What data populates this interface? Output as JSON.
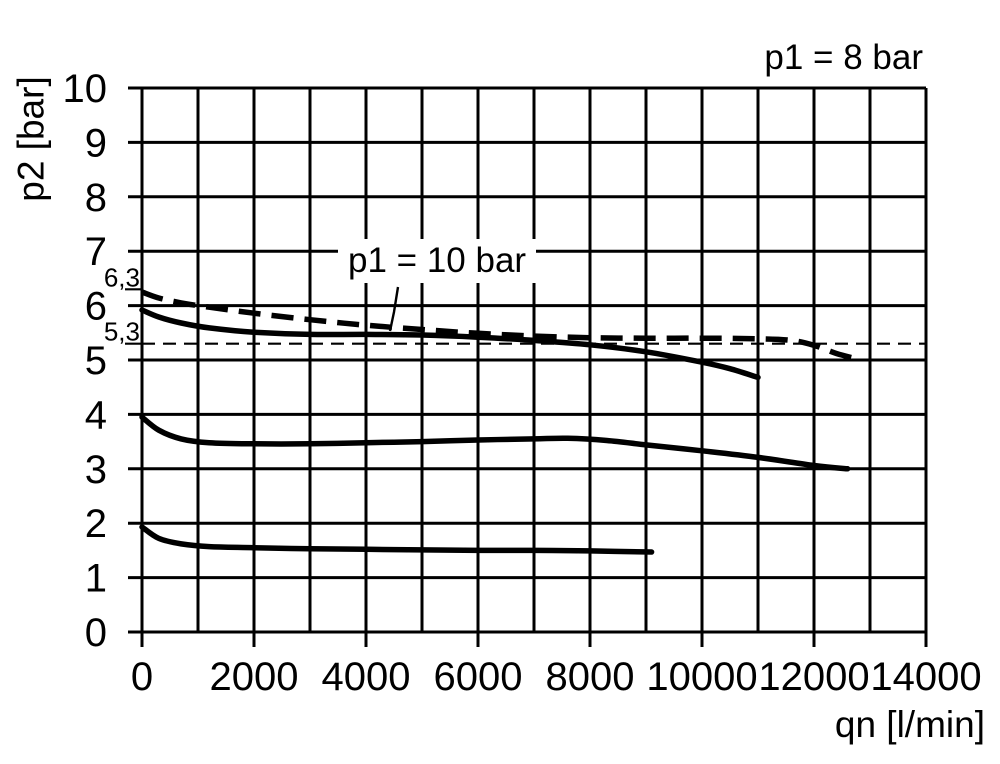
{
  "chart_data": {
    "type": "line",
    "xlabel": "qn [l/min]",
    "ylabel": "p2 [bar]",
    "xlim": [
      0,
      14000
    ],
    "ylim": [
      0,
      10
    ],
    "x_grid_step": 1000,
    "y_grid_step": 1,
    "grid": "on",
    "legend_position": "none",
    "annotations": {
      "p1_8": "p1 = 8 bar",
      "p1_10": "p1 = 10 bar"
    },
    "x_ticks": [
      {
        "v": 0,
        "label": "0"
      },
      {
        "v": 2000,
        "label": "2000"
      },
      {
        "v": 4000,
        "label": "4000"
      },
      {
        "v": 6000,
        "label": "6000"
      },
      {
        "v": 8000,
        "label": "8000"
      },
      {
        "v": 10000,
        "label": "10000"
      },
      {
        "v": 12000,
        "label": "12000"
      },
      {
        "v": 14000,
        "label": "14000"
      }
    ],
    "y_ticks": [
      {
        "v": 0,
        "label": "0"
      },
      {
        "v": 1,
        "label": "1"
      },
      {
        "v": 2,
        "label": "2"
      },
      {
        "v": 3,
        "label": "3"
      },
      {
        "v": 4,
        "label": "4"
      },
      {
        "v": 5,
        "label": "5"
      },
      {
        "v": 6,
        "label": "6"
      },
      {
        "v": 7,
        "label": "7"
      },
      {
        "v": 8,
        "label": "8"
      },
      {
        "v": 9,
        "label": "9"
      },
      {
        "v": 10,
        "label": "10"
      }
    ],
    "special_y_marks": [
      {
        "v": 6.3,
        "label": "6,3",
        "full_dashed_line": false
      },
      {
        "v": 5.3,
        "label": "5,3",
        "full_dashed_line": true
      }
    ],
    "series": [
      {
        "label": "p1 = 10 bar",
        "style": "dashed",
        "points": [
          [
            0,
            6.25
          ],
          [
            300,
            6.14
          ],
          [
            700,
            6.05
          ],
          [
            1200,
            5.97
          ],
          [
            2000,
            5.86
          ],
          [
            3000,
            5.74
          ],
          [
            4000,
            5.64
          ],
          [
            5000,
            5.56
          ],
          [
            6000,
            5.49
          ],
          [
            7000,
            5.44
          ],
          [
            8000,
            5.41
          ],
          [
            9000,
            5.4
          ],
          [
            10000,
            5.4
          ],
          [
            11000,
            5.39
          ],
          [
            11600,
            5.36
          ],
          [
            12000,
            5.27
          ],
          [
            12400,
            5.12
          ],
          [
            12800,
            5.01
          ]
        ]
      },
      {
        "label": "p1 = 8 bar",
        "style": "solid",
        "points": [
          [
            0,
            5.92
          ],
          [
            300,
            5.79
          ],
          [
            700,
            5.68
          ],
          [
            1200,
            5.59
          ],
          [
            2000,
            5.51
          ],
          [
            3000,
            5.47
          ],
          [
            4000,
            5.47
          ],
          [
            5000,
            5.46
          ],
          [
            6000,
            5.42
          ],
          [
            7000,
            5.36
          ],
          [
            8000,
            5.28
          ],
          [
            9000,
            5.15
          ],
          [
            10000,
            4.96
          ],
          [
            10500,
            4.84
          ],
          [
            11000,
            4.68
          ]
        ]
      },
      {
        "label": "",
        "style": "solid",
        "points": [
          [
            0,
            3.95
          ],
          [
            300,
            3.71
          ],
          [
            700,
            3.55
          ],
          [
            1200,
            3.48
          ],
          [
            2000,
            3.46
          ],
          [
            3000,
            3.46
          ],
          [
            4000,
            3.48
          ],
          [
            5000,
            3.5
          ],
          [
            6000,
            3.53
          ],
          [
            7000,
            3.55
          ],
          [
            7600,
            3.56
          ],
          [
            8300,
            3.52
          ],
          [
            9000,
            3.44
          ],
          [
            10000,
            3.33
          ],
          [
            11000,
            3.21
          ],
          [
            12000,
            3.06
          ],
          [
            12600,
            3.0
          ]
        ]
      },
      {
        "label": "",
        "style": "solid",
        "points": [
          [
            0,
            1.93
          ],
          [
            300,
            1.72
          ],
          [
            700,
            1.62
          ],
          [
            1200,
            1.57
          ],
          [
            2000,
            1.55
          ],
          [
            3000,
            1.53
          ],
          [
            4000,
            1.52
          ],
          [
            5000,
            1.51
          ],
          [
            6000,
            1.5
          ],
          [
            7000,
            1.5
          ],
          [
            8000,
            1.49
          ],
          [
            9100,
            1.47
          ]
        ]
      }
    ],
    "colors": {
      "ink": "#000000",
      "background": "#ffffff"
    }
  }
}
